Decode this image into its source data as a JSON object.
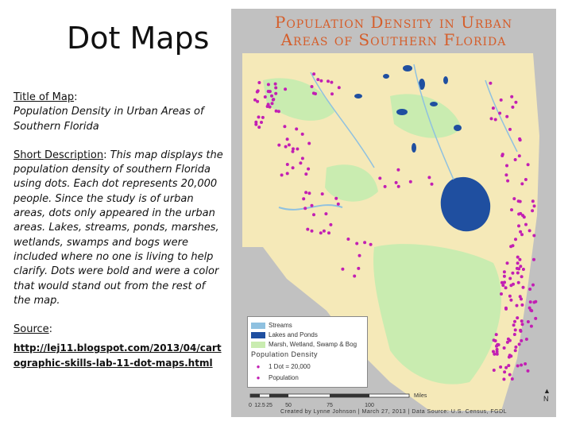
{
  "slide": {
    "title": "Dot Maps",
    "title_label": "Title of Map",
    "title_colon": ":",
    "title_value": "Population Density in Urban Areas of Southern Florida",
    "desc_label": "Short Description",
    "desc_colon": ":",
    "desc_text": " This map displays the population density of southern Florida using dots.  Each dot represents 20,000 people.  Since the study is of urban areas, dots only appeared in the urban areas. Lakes, streams, ponds, marshes, wetlands, swamps and bogs were included where no one is living to help clarify. Dots were bold and were a color that would stand out from the rest of the map.",
    "source_label": "Source",
    "source_colon": ":",
    "source_url": "http://lej11.blogspot.com/2013/04/cartographic-skills-lab-11-dot-maps.html"
  },
  "map": {
    "title_line1": "Population Density in Urban",
    "title_line2": "Areas of Southern Florida",
    "legend": {
      "streams": "Streams",
      "lakes": "Lakes and Ponds",
      "marsh": "Marsh, Wetland, Swamp & Bog",
      "heading": "Population Density",
      "dot_value": "1 Dot = 20,000",
      "population": "Population"
    },
    "scale": {
      "ticks": [
        "0",
        "12.5",
        "25",
        "50",
        "75",
        "100"
      ],
      "unit": "Miles"
    },
    "north": "N",
    "credit": "Created by Lynne Johnson | March 27, 2013 | Data Source: U.S. Census, FGDL",
    "colors": {
      "land": "#f5e9b8",
      "marsh": "#c9ecb0",
      "lake": "#1f4fa0",
      "stream": "#8fc1e0",
      "dot": "#c21fb3",
      "frame": "#c1c1c1",
      "title": "#d55e2b"
    }
  }
}
